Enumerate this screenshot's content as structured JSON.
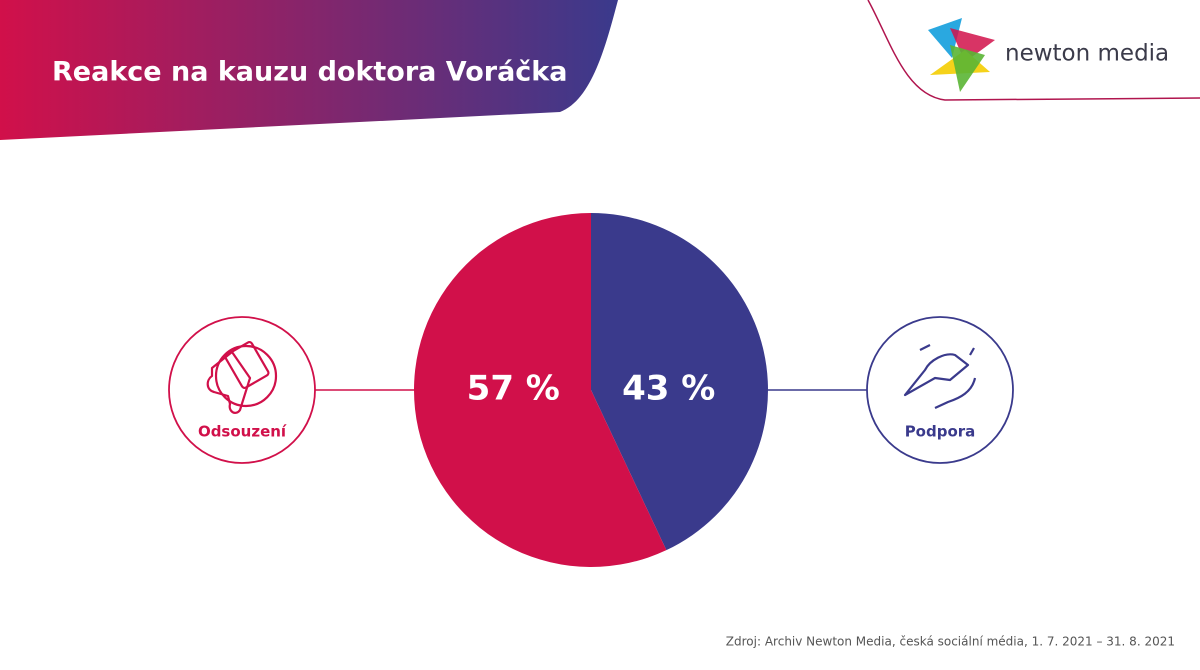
{
  "logo": "newton media",
  "chart_data": {
    "type": "pie",
    "title": "Reakce na kauzu doktora Voráčka",
    "categories": [
      "Odsouzení",
      "Podpora"
    ],
    "values": [
      57,
      43
    ],
    "value_labels": [
      "57 %",
      "43 %"
    ],
    "colors": [
      "#d1104a",
      "#3a3a8c"
    ],
    "source": "Zdroj: Archiv Newton Media, česká sociální média, 1. 7. 2021 – 31. 8. 2021"
  }
}
